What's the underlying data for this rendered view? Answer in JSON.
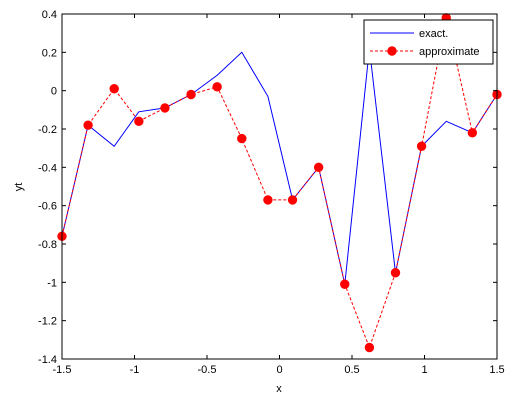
{
  "chart_data": {
    "type": "line",
    "xlabel": "x",
    "ylabel": "yt",
    "xlim": [
      -1.5,
      1.5
    ],
    "ylim": [
      -1.4,
      0.4
    ],
    "xticks": [
      -1.5,
      -1,
      -0.5,
      0,
      0.5,
      1,
      1.5
    ],
    "xtick_labels": [
      "-1.5",
      "-1",
      "-0.5",
      "0",
      "0.5",
      "1",
      "1.5"
    ],
    "yticks": [
      -1.4,
      -1.2,
      -1,
      -0.8,
      -0.6,
      -0.4,
      -0.2,
      0,
      0.2,
      0.4
    ],
    "ytick_labels": [
      "-1.4",
      "-1.2",
      "-1",
      "-0.8",
      "-0.6",
      "-0.4",
      "-0.2",
      "0",
      "0.2",
      "0.4"
    ],
    "grid": false,
    "legend_position": "top-right",
    "series": [
      {
        "name": "exact.",
        "color": "#0000ff",
        "line_style": "solid",
        "marker": "none",
        "x": [
          -1.5,
          -1.32,
          -1.14,
          -0.97,
          -0.79,
          -0.61,
          -0.43,
          -0.26,
          -0.08,
          0.09,
          0.27,
          0.45,
          0.62,
          0.8,
          0.98,
          1.15,
          1.33,
          1.5
        ],
        "y": [
          -0.76,
          -0.18,
          -0.29,
          -0.11,
          -0.09,
          -0.02,
          0.08,
          0.2,
          -0.03,
          -0.57,
          -0.4,
          -1.01,
          0.22,
          -0.95,
          -0.29,
          -0.16,
          -0.22,
          -0.02
        ]
      },
      {
        "name": "approximate",
        "color": "#ff0000",
        "line_style": "dashed",
        "marker": "circle",
        "x": [
          -1.5,
          -1.32,
          -1.14,
          -0.97,
          -0.79,
          -0.61,
          -0.43,
          -0.26,
          -0.08,
          0.09,
          0.27,
          0.45,
          0.62,
          0.8,
          0.98,
          1.15,
          1.33,
          1.5
        ],
        "y": [
          -0.76,
          -0.18,
          0.01,
          -0.16,
          -0.09,
          -0.02,
          0.02,
          -0.25,
          -0.57,
          -0.57,
          -0.4,
          -1.01,
          -1.34,
          -0.95,
          -0.29,
          0.38,
          -0.22,
          -0.02
        ]
      }
    ]
  }
}
